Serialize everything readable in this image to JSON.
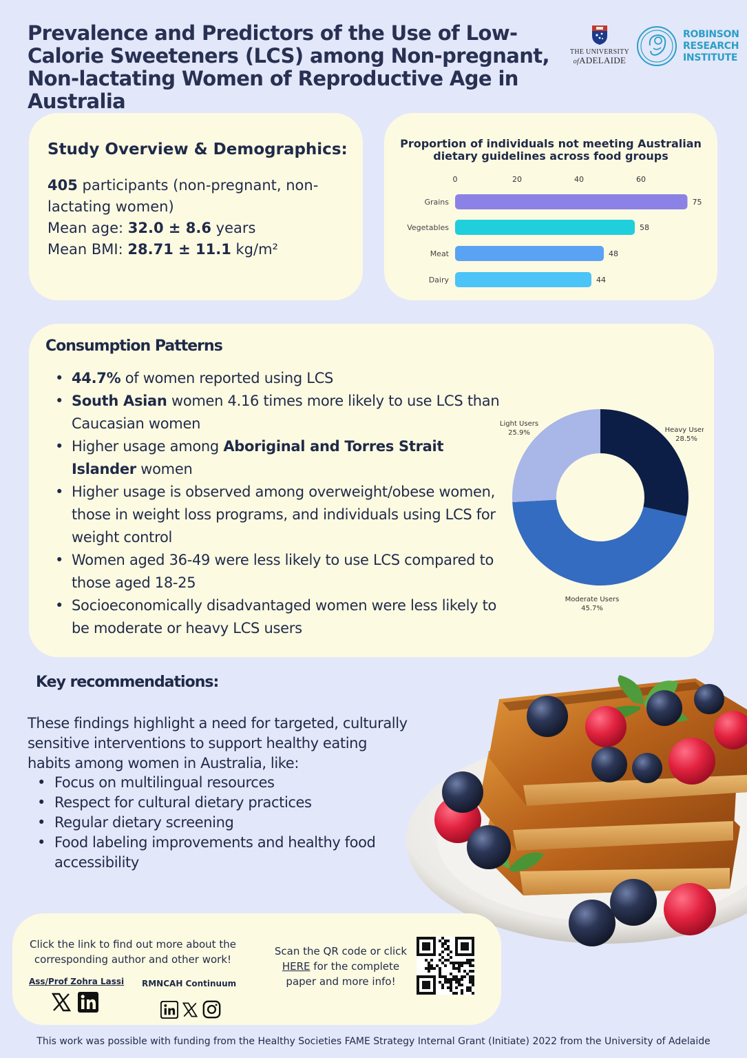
{
  "header": {
    "title": "Prevalence and Predictors of the Use of Low-Calorie Sweeteners (LCS) among Non-pregnant, Non-lactating Women of Reproductive Age in Australia",
    "university_logo": {
      "line1": "THE UNIVERSITY",
      "line2_small": "of",
      "line2_big": "ADELAIDE",
      "icon": "university-crest-icon"
    },
    "institute_logo": {
      "line1": "ROBINSON",
      "line2": "RESEARCH",
      "line3": "INSTITUTE",
      "icon": "fetus-circle-icon",
      "color": "#2a9fc7"
    }
  },
  "overview": {
    "heading": "Study Overview & Demographics:",
    "participants_count": "405",
    "participants_text": " participants (non-pregnant, non-lactating women)",
    "age_label": "Mean age: ",
    "age_value": "32.0 ± 8.6",
    "age_unit": " years",
    "bmi_label": "Mean BMI: ",
    "bmi_value": "28.71 ± 11.1",
    "bmi_unit": " kg/m²"
  },
  "chart_data": [
    {
      "type": "bar",
      "orientation": "horizontal",
      "title": "Proportion of individuals not meeting Australian dietary guidelines across food groups",
      "categories": [
        "Grains",
        "Vegetables",
        "Meat",
        "Dairy"
      ],
      "values": [
        75,
        58,
        48,
        44
      ],
      "colors": [
        "#8c82e6",
        "#1fcfdc",
        "#5aa2f4",
        "#4cc4f7"
      ],
      "x_ticks": [
        "0",
        "20",
        "40",
        "60"
      ],
      "xlim": [
        0,
        80
      ],
      "axis_position": "top",
      "grid": false,
      "data_labels": true
    },
    {
      "type": "pie",
      "style": "donut",
      "categories": [
        "Heavy Users",
        "Moderate Users",
        "Light Users"
      ],
      "values": [
        28.5,
        45.7,
        25.9
      ],
      "labels": [
        "28.5%",
        "45.7%",
        "25.9%"
      ],
      "colors": [
        "#0c1e45",
        "#336cc0",
        "#a8b6e8"
      ]
    }
  ],
  "consumption": {
    "heading": "Consumption Patterns",
    "items": [
      {
        "bold": "44.7%",
        "text": " of women reported using LCS"
      },
      {
        "bold": "South Asian",
        "text": " women 4.16 times more likely to use LCS than Caucasian women"
      },
      {
        "pre": "Higher usage among ",
        "bold": "Aboriginal and Torres Strait Islander",
        "text": " women"
      },
      {
        "text": "Higher usage is observed among overweight/obese women, those in weight loss programs, and individuals using LCS for weight control"
      },
      {
        "text": "Women aged 36-49 were less likely to use LCS compared to those aged 18-25"
      },
      {
        "text": "Socioeconomically disadvantaged women were less likely to be moderate or heavy LCS users"
      }
    ]
  },
  "recommendations": {
    "heading": "Key recommendations:",
    "intro": "These findings highlight a need for targeted, culturally sensitive interventions to support healthy eating habits among women in Australia, like:",
    "items": [
      "Focus on multilingual resources",
      "Respect for cultural dietary practices",
      "Regular dietary screening",
      "Food labeling improvements and healthy food accessibility"
    ],
    "image": "french-toast-with-berries-photo"
  },
  "links": {
    "intro": "Click the link to find out more about the corresponding author and other work!",
    "author": "Ass/Prof Zohra Lassi",
    "group": "RMNCAH Continuum",
    "qr_text_pre": "Scan the QR code or click ",
    "qr_link": "HERE",
    "qr_text_post": " for the complete paper and more info!",
    "icons": [
      "x-icon",
      "linkedin-icon",
      "instagram-icon",
      "qr-code-icon"
    ]
  },
  "footer": "This work was possible with funding from the Healthy Societies FAME Strategy Internal Grant (Initiate) 2022 from the University of Adelaide"
}
